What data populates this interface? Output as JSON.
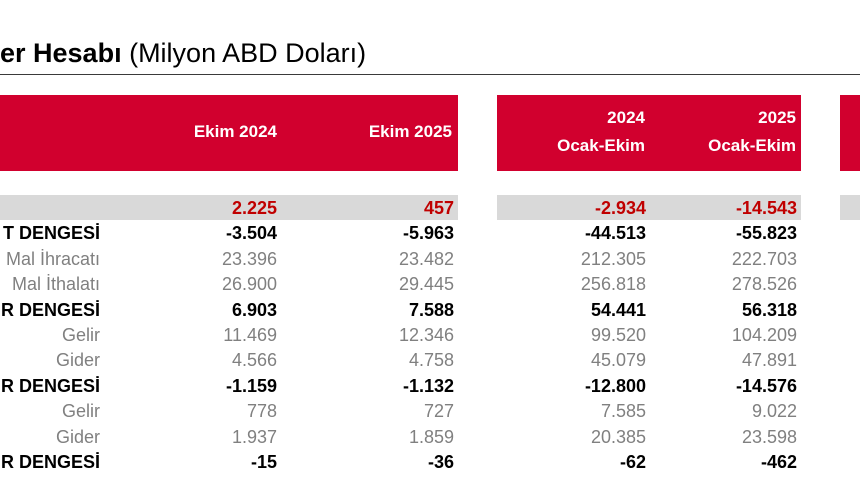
{
  "title": {
    "bold": "er Hesabı",
    "normal": " (Milyon ABD Doları)"
  },
  "headers": {
    "ekim_2024": "Ekim 2024",
    "ekim_2025": "Ekim 2025",
    "ytd_2024_year": "2024",
    "ytd_2024_period": "Ocak-Ekim",
    "ytd_2025_year": "2025",
    "ytd_2025_period": "Ocak-Ekim"
  },
  "rows": [
    {
      "label": "",
      "values": [
        "2.225",
        "457",
        "-2.934",
        "-14.543"
      ],
      "style": "red"
    },
    {
      "label": "T DENGESİ",
      "values": [
        "-3.504",
        "-5.963",
        "-44.513",
        "-55.823"
      ],
      "style": "bold"
    },
    {
      "label": "Mal İhracatı",
      "values": [
        "23.396",
        "23.482",
        "212.305",
        "222.703"
      ],
      "style": "sub"
    },
    {
      "label": "Mal İthalatı",
      "values": [
        "26.900",
        "29.445",
        "256.818",
        "278.526"
      ],
      "style": "sub"
    },
    {
      "label": "R DENGESİ",
      "values": [
        "6.903",
        "7.588",
        "54.441",
        "56.318"
      ],
      "style": "bold"
    },
    {
      "label": "Gelir",
      "values": [
        "11.469",
        "12.346",
        "99.520",
        "104.209"
      ],
      "style": "sub"
    },
    {
      "label": "Gider",
      "values": [
        "4.566",
        "4.758",
        "45.079",
        "47.891"
      ],
      "style": "sub"
    },
    {
      "label": "R DENGESİ",
      "values": [
        "-1.159",
        "-1.132",
        "-12.800",
        "-14.576"
      ],
      "style": "bold"
    },
    {
      "label": "Gelir",
      "values": [
        "778",
        "727",
        "7.585",
        "9.022"
      ],
      "style": "sub"
    },
    {
      "label": "Gider",
      "values": [
        "1.937",
        "1.859",
        "20.385",
        "23.598"
      ],
      "style": "sub"
    },
    {
      "label": "R DENGESİ",
      "values": [
        "-15",
        "-36",
        "-62",
        "-462"
      ],
      "style": "bold"
    }
  ]
}
